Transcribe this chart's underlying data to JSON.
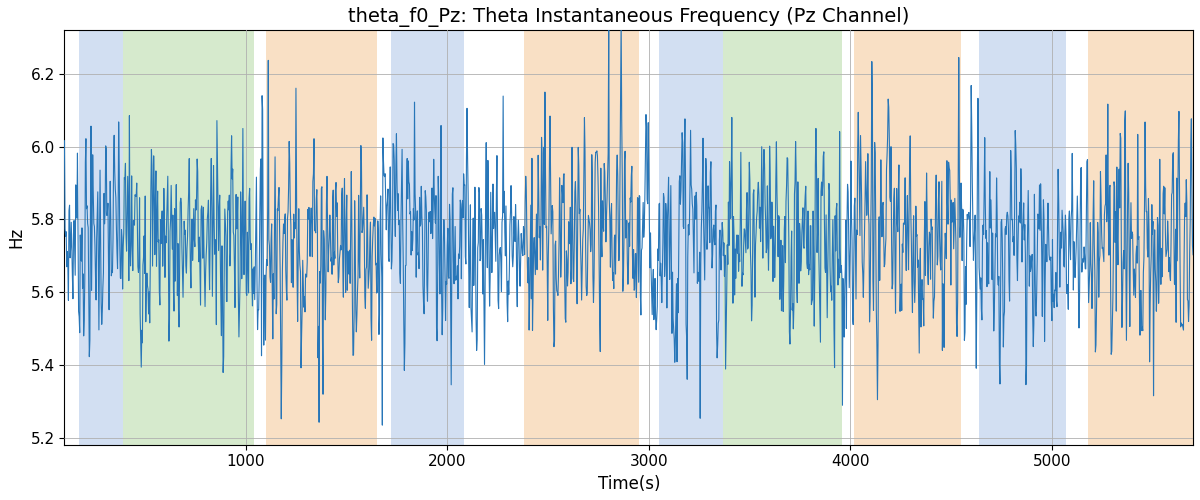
{
  "title": "theta_f0_Pz: Theta Instantaneous Frequency (Pz Channel)",
  "xlabel": "Time(s)",
  "ylabel": "Hz",
  "xlim": [
    100,
    5700
  ],
  "ylim": [
    5.18,
    6.32
  ],
  "yticks": [
    5.2,
    5.4,
    5.6,
    5.8,
    6.0,
    6.2
  ],
  "xticks": [
    1000,
    2000,
    3000,
    4000,
    5000
  ],
  "line_color": "#2876b8",
  "line_width": 0.8,
  "background_color": "#ffffff",
  "grid_color": "#b0b0b0",
  "shaded_regions": [
    {
      "xmin": 170,
      "xmax": 390,
      "color": "#aec6e8",
      "alpha": 0.55
    },
    {
      "xmin": 390,
      "xmax": 1040,
      "color": "#b5d9a5",
      "alpha": 0.55
    },
    {
      "xmin": 1100,
      "xmax": 1650,
      "color": "#f5c896",
      "alpha": 0.55
    },
    {
      "xmin": 1720,
      "xmax": 2080,
      "color": "#aec6e8",
      "alpha": 0.55
    },
    {
      "xmin": 2380,
      "xmax": 2950,
      "color": "#f5c896",
      "alpha": 0.55
    },
    {
      "xmin": 3050,
      "xmax": 3370,
      "color": "#aec6e8",
      "alpha": 0.55
    },
    {
      "xmin": 3370,
      "xmax": 3960,
      "color": "#b5d9a5",
      "alpha": 0.55
    },
    {
      "xmin": 4020,
      "xmax": 4550,
      "color": "#f5c896",
      "alpha": 0.55
    },
    {
      "xmin": 4640,
      "xmax": 5070,
      "color": "#aec6e8",
      "alpha": 0.55
    },
    {
      "xmin": 5180,
      "xmax": 5700,
      "color": "#f5c896",
      "alpha": 0.55
    }
  ],
  "seed": 7,
  "n_points": 2000,
  "t_start": 100,
  "t_end": 5700,
  "base_freq": 5.75,
  "noise_amp": 0.22,
  "title_fontsize": 14,
  "label_fontsize": 12,
  "tick_fontsize": 11
}
